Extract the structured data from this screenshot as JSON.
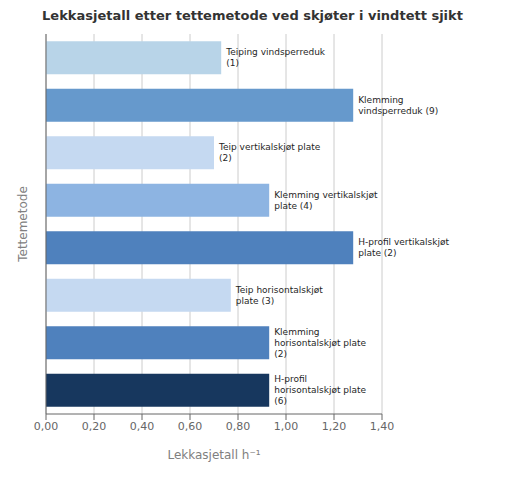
{
  "chart_data": {
    "type": "bar",
    "orientation": "horizontal",
    "title": "Lekkasjetall etter tettemetode ved skjøter i vindtett sjikt",
    "xlabel": "Lekkasjetall h⁻¹",
    "ylabel": "Tettemetode",
    "categories": [
      "Teiping vindsperreduk\n(1)",
      "Klemming\nvindsperreduk (9)",
      "Teip vertikalskjøt plate\n(2)",
      "Klemming vertikalskjøt\nplate (4)",
      "H-profil vertikalskjøt\nplate (2)",
      "Teip horisontalskjøt\nplate (3)",
      "Klemming\nhorisontalskjøt plate\n(2)",
      "H-profil\nhorisontalskjøt plate\n(6)"
    ],
    "values": [
      0.73,
      1.28,
      0.7,
      0.93,
      1.28,
      0.77,
      0.93,
      0.93
    ],
    "colors": [
      "#B8D4E8",
      "#6699CC",
      "#C5D9F1",
      "#8DB4E2",
      "#4F81BD",
      "#C5D9F1",
      "#4F81BD",
      "#17375E"
    ],
    "xlim": [
      0,
      1.4
    ],
    "xticks": [
      {
        "value": 0.0,
        "label": "0,00"
      },
      {
        "value": 0.2,
        "label": "0,20"
      },
      {
        "value": 0.4,
        "label": "0,40"
      },
      {
        "value": 0.6,
        "label": "0,60"
      },
      {
        "value": 0.8,
        "label": "0,80"
      },
      {
        "value": 1.0,
        "label": "1,00"
      },
      {
        "value": 1.2,
        "label": "1,20"
      },
      {
        "value": 1.4,
        "label": "1,40"
      }
    ],
    "grid": true,
    "tick_labels": "x"
  }
}
